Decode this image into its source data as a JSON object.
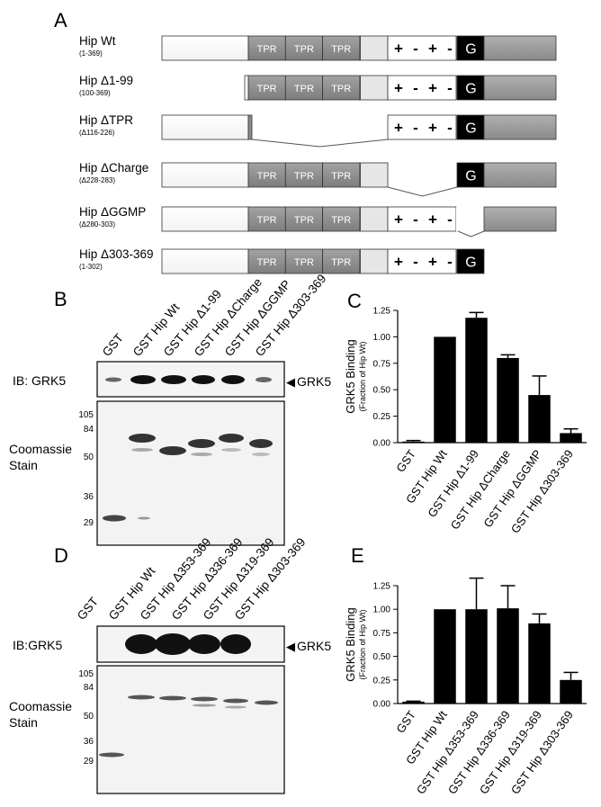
{
  "panel_letters": {
    "a": "A",
    "b": "B",
    "c": "C",
    "d": "D",
    "e": "E"
  },
  "panel_a": {
    "constructs": [
      {
        "name": "Hip Wt",
        "range": "(1-369)"
      },
      {
        "name": "Hip Δ1-99",
        "range": "(100-369)"
      },
      {
        "name": "Hip ΔTPR",
        "range": "(Δ116-226)"
      },
      {
        "name": "Hip ΔCharge",
        "range": "(Δ228-283)"
      },
      {
        "name": "Hip ΔGGMP",
        "range": "(Δ280-303)"
      },
      {
        "name": "Hip Δ303-369",
        "range": "(1-302)"
      }
    ],
    "domain_labels": {
      "tpr": "TPR",
      "g": "G",
      "charges": [
        "+",
        "-",
        "+",
        "-"
      ]
    },
    "colors": {
      "tpr": "#8c8c8c",
      "linker": "#e6e6e6",
      "g_box": "#000000",
      "ggmp_tail": "#9a9a9a",
      "outline": "#333333"
    }
  },
  "panel_b": {
    "lanes": [
      "GST",
      "GST Hip Wt",
      "GST Hip Δ1-99",
      "GST Hip ΔCharge",
      "GST Hip ΔGGMP",
      "GST Hip Δ303-369"
    ],
    "blot_label": "IB: GRK5",
    "band_label": "GRK5",
    "gel_label": [
      "Coomassie",
      "Stain"
    ],
    "mw_markers": [
      "105",
      "84",
      "50",
      "36",
      "29"
    ]
  },
  "panel_d": {
    "lanes": [
      "GST",
      "GST Hip Wt",
      "GST Hip Δ353-369",
      "GST Hip Δ336-369",
      "GST Hip Δ319-369",
      "GST Hip Δ303-369"
    ],
    "blot_label": "IB:GRK5",
    "band_label": "GRK5",
    "gel_label": [
      "Coomassie",
      "Stain"
    ],
    "mw_markers": [
      "105",
      "84",
      "50",
      "36",
      "29"
    ]
  },
  "chart_data": [
    {
      "panel": "C",
      "type": "bar",
      "title": "",
      "ylabel": "GRK5 Binding",
      "ylabel_sub": "(Fraction of Hip Wt)",
      "categories": [
        "GST",
        "GST Hip Wt",
        "GST Hip Δ1-99",
        "GST Hip ΔCharge",
        "GST Hip ΔGGMP",
        "GST Hip Δ303-369"
      ],
      "values": [
        0.01,
        1.0,
        1.18,
        0.8,
        0.45,
        0.09
      ],
      "errors": [
        0.01,
        0.0,
        0.05,
        0.03,
        0.18,
        0.04
      ],
      "ylim": [
        0,
        1.25
      ],
      "yticks": [
        "0.00",
        "0.25",
        "0.50",
        "0.75",
        "1.00",
        "1.25"
      ],
      "bar_color": "#000000"
    },
    {
      "panel": "E",
      "type": "bar",
      "title": "",
      "ylabel": "GRK5 Binding",
      "ylabel_sub": "(Fraction of Hip Wt)",
      "categories": [
        "GST",
        "GST Hip Wt",
        "GST Hip Δ353-369",
        "GST Hip Δ336-369",
        "GST Hip Δ319-369",
        "GST Hip Δ303-369"
      ],
      "values": [
        0.02,
        1.0,
        1.0,
        1.01,
        0.85,
        0.25
      ],
      "errors": [
        0.005,
        0.0,
        0.33,
        0.24,
        0.1,
        0.08
      ],
      "ylim": [
        0,
        1.25
      ],
      "yticks": [
        "0.00",
        "0.25",
        "0.50",
        "0.75",
        "1.00",
        "1.25"
      ],
      "bar_color": "#000000"
    }
  ]
}
